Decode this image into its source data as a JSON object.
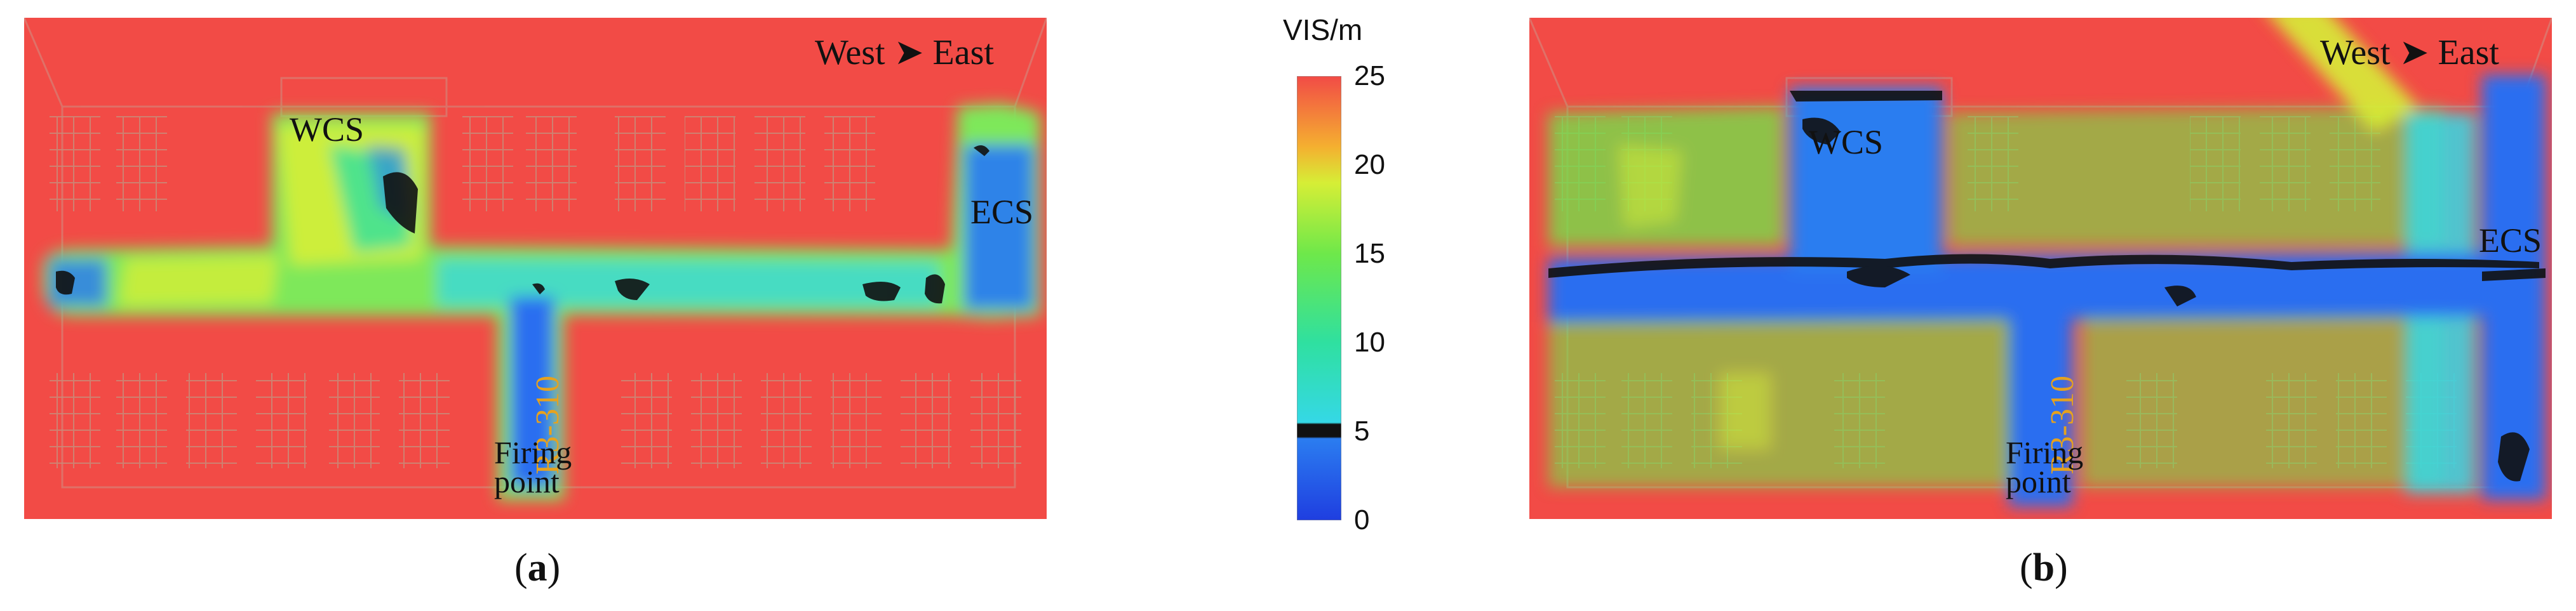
{
  "colorbar": {
    "title": "VIS/m",
    "ticks": [
      "25",
      "20",
      "15",
      "10",
      "5",
      "0"
    ],
    "stops": [
      {
        "value": 0,
        "color": "#1f3ee0"
      },
      {
        "value": 4.6,
        "color": "#2b7df0"
      },
      {
        "value": 4.7,
        "color": "#111111"
      },
      {
        "value": 5.4,
        "color": "#111111"
      },
      {
        "value": 5.5,
        "color": "#35d8e6"
      },
      {
        "value": 10,
        "color": "#2fe0a0"
      },
      {
        "value": 15,
        "color": "#6ee84a"
      },
      {
        "value": 19,
        "color": "#d6ee36"
      },
      {
        "value": 21,
        "color": "#f4b030"
      },
      {
        "value": 25,
        "color": "#f24b46"
      }
    ]
  },
  "panels": [
    {
      "id": "a",
      "caption_open": "(",
      "caption_letter": "a",
      "caption_close": ")",
      "compass_west": "West",
      "compass_east": "East",
      "wcs_label": "WCS",
      "ecs_label": "ECS",
      "room_label": "R3-310",
      "firing_line1": "Firing",
      "firing_line2": "point"
    },
    {
      "id": "b",
      "caption_open": "(",
      "caption_letter": "b",
      "caption_close": ")",
      "compass_west": "West",
      "compass_east": "East",
      "wcs_label": "WCS",
      "ecs_label": "ECS",
      "room_label": "R3-310",
      "firing_line1": "Firing",
      "firing_line2": "point"
    }
  ],
  "colors": {
    "background_red": "#f24b46",
    "low_vis_blue": "#2b6ef0",
    "critical_black": "#111111",
    "mid_green": "#4fe06a",
    "label_orange": "#e6a21e"
  }
}
